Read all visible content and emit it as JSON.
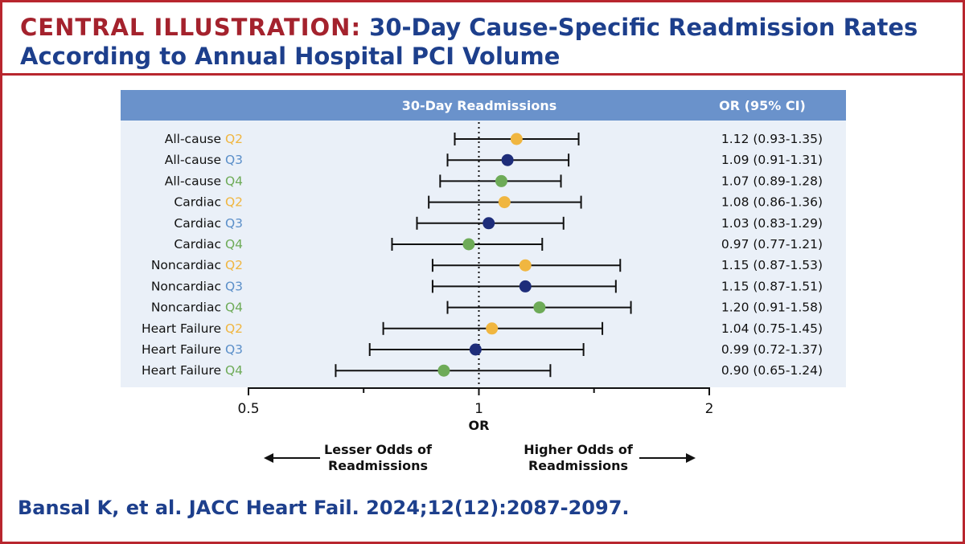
{
  "title": {
    "kicker": "CENTRAL ILLUSTRATION:",
    "line1": "30-Day Cause-Specific Readmission Rates",
    "line2": "According to Annual Hospital PCI Volume"
  },
  "citation": "Bansal K, et al. JACC Heart Fail. 2024;12(12):2087-2097.",
  "colors": {
    "Q2": "#f0b640",
    "Q3": "#1e2d7a",
    "Q4": "#6eab58",
    "Q3_label": "#5b8fc9",
    "accent": "#a4222d",
    "text_blue": "#1d3f8c",
    "header_bar": "#6a92cb",
    "panel_bg": "#eaf0f8"
  },
  "chart_data": {
    "type": "forest",
    "column_headers": {
      "plot": "30-Day Readmissions",
      "values": "OR (95% CI)"
    },
    "xlabel": "OR",
    "x_scale": "log",
    "xlim": [
      0.5,
      2
    ],
    "xticks": [
      {
        "value": 0.5,
        "label": "0.5"
      },
      {
        "value": 1,
        "label": "1"
      },
      {
        "value": 2,
        "label": "2"
      }
    ],
    "minor_ticks": [
      0.707,
      1.414
    ],
    "reference_line": 1,
    "annotations": {
      "left_line1": "Lesser Odds of",
      "left_line2": "Readmissions",
      "right_line1": "Higher Odds of",
      "right_line2": "Readmissions"
    },
    "rows": [
      {
        "label": "All-cause",
        "quartile": "Q2",
        "or": 1.12,
        "lo": 0.93,
        "hi": 1.35,
        "text": "1.12 (0.93-1.35)"
      },
      {
        "label": "All-cause",
        "quartile": "Q3",
        "or": 1.09,
        "lo": 0.91,
        "hi": 1.31,
        "text": "1.09 (0.91-1.31)"
      },
      {
        "label": "All-cause",
        "quartile": "Q4",
        "or": 1.07,
        "lo": 0.89,
        "hi": 1.28,
        "text": "1.07 (0.89-1.28)"
      },
      {
        "label": "Cardiac",
        "quartile": "Q2",
        "or": 1.08,
        "lo": 0.86,
        "hi": 1.36,
        "text": "1.08 (0.86-1.36)"
      },
      {
        "label": "Cardiac",
        "quartile": "Q3",
        "or": 1.03,
        "lo": 0.83,
        "hi": 1.29,
        "text": "1.03 (0.83-1.29)"
      },
      {
        "label": "Cardiac",
        "quartile": "Q4",
        "or": 0.97,
        "lo": 0.77,
        "hi": 1.21,
        "text": "0.97 (0.77-1.21)"
      },
      {
        "label": "Noncardiac",
        "quartile": "Q2",
        "or": 1.15,
        "lo": 0.87,
        "hi": 1.53,
        "text": "1.15 (0.87-1.53)"
      },
      {
        "label": "Noncardiac",
        "quartile": "Q3",
        "or": 1.15,
        "lo": 0.87,
        "hi": 1.51,
        "text": "1.15 (0.87-1.51)"
      },
      {
        "label": "Noncardiac",
        "quartile": "Q4",
        "or": 1.2,
        "lo": 0.91,
        "hi": 1.58,
        "text": "1.20 (0.91-1.58)"
      },
      {
        "label": "Heart Failure",
        "quartile": "Q2",
        "or": 1.04,
        "lo": 0.75,
        "hi": 1.45,
        "text": "1.04 (0.75-1.45)"
      },
      {
        "label": "Heart Failure",
        "quartile": "Q3",
        "or": 0.99,
        "lo": 0.72,
        "hi": 1.37,
        "text": "0.99 (0.72-1.37)"
      },
      {
        "label": "Heart Failure",
        "quartile": "Q4",
        "or": 0.9,
        "lo": 0.65,
        "hi": 1.24,
        "text": "0.90 (0.65-1.24)"
      }
    ]
  }
}
